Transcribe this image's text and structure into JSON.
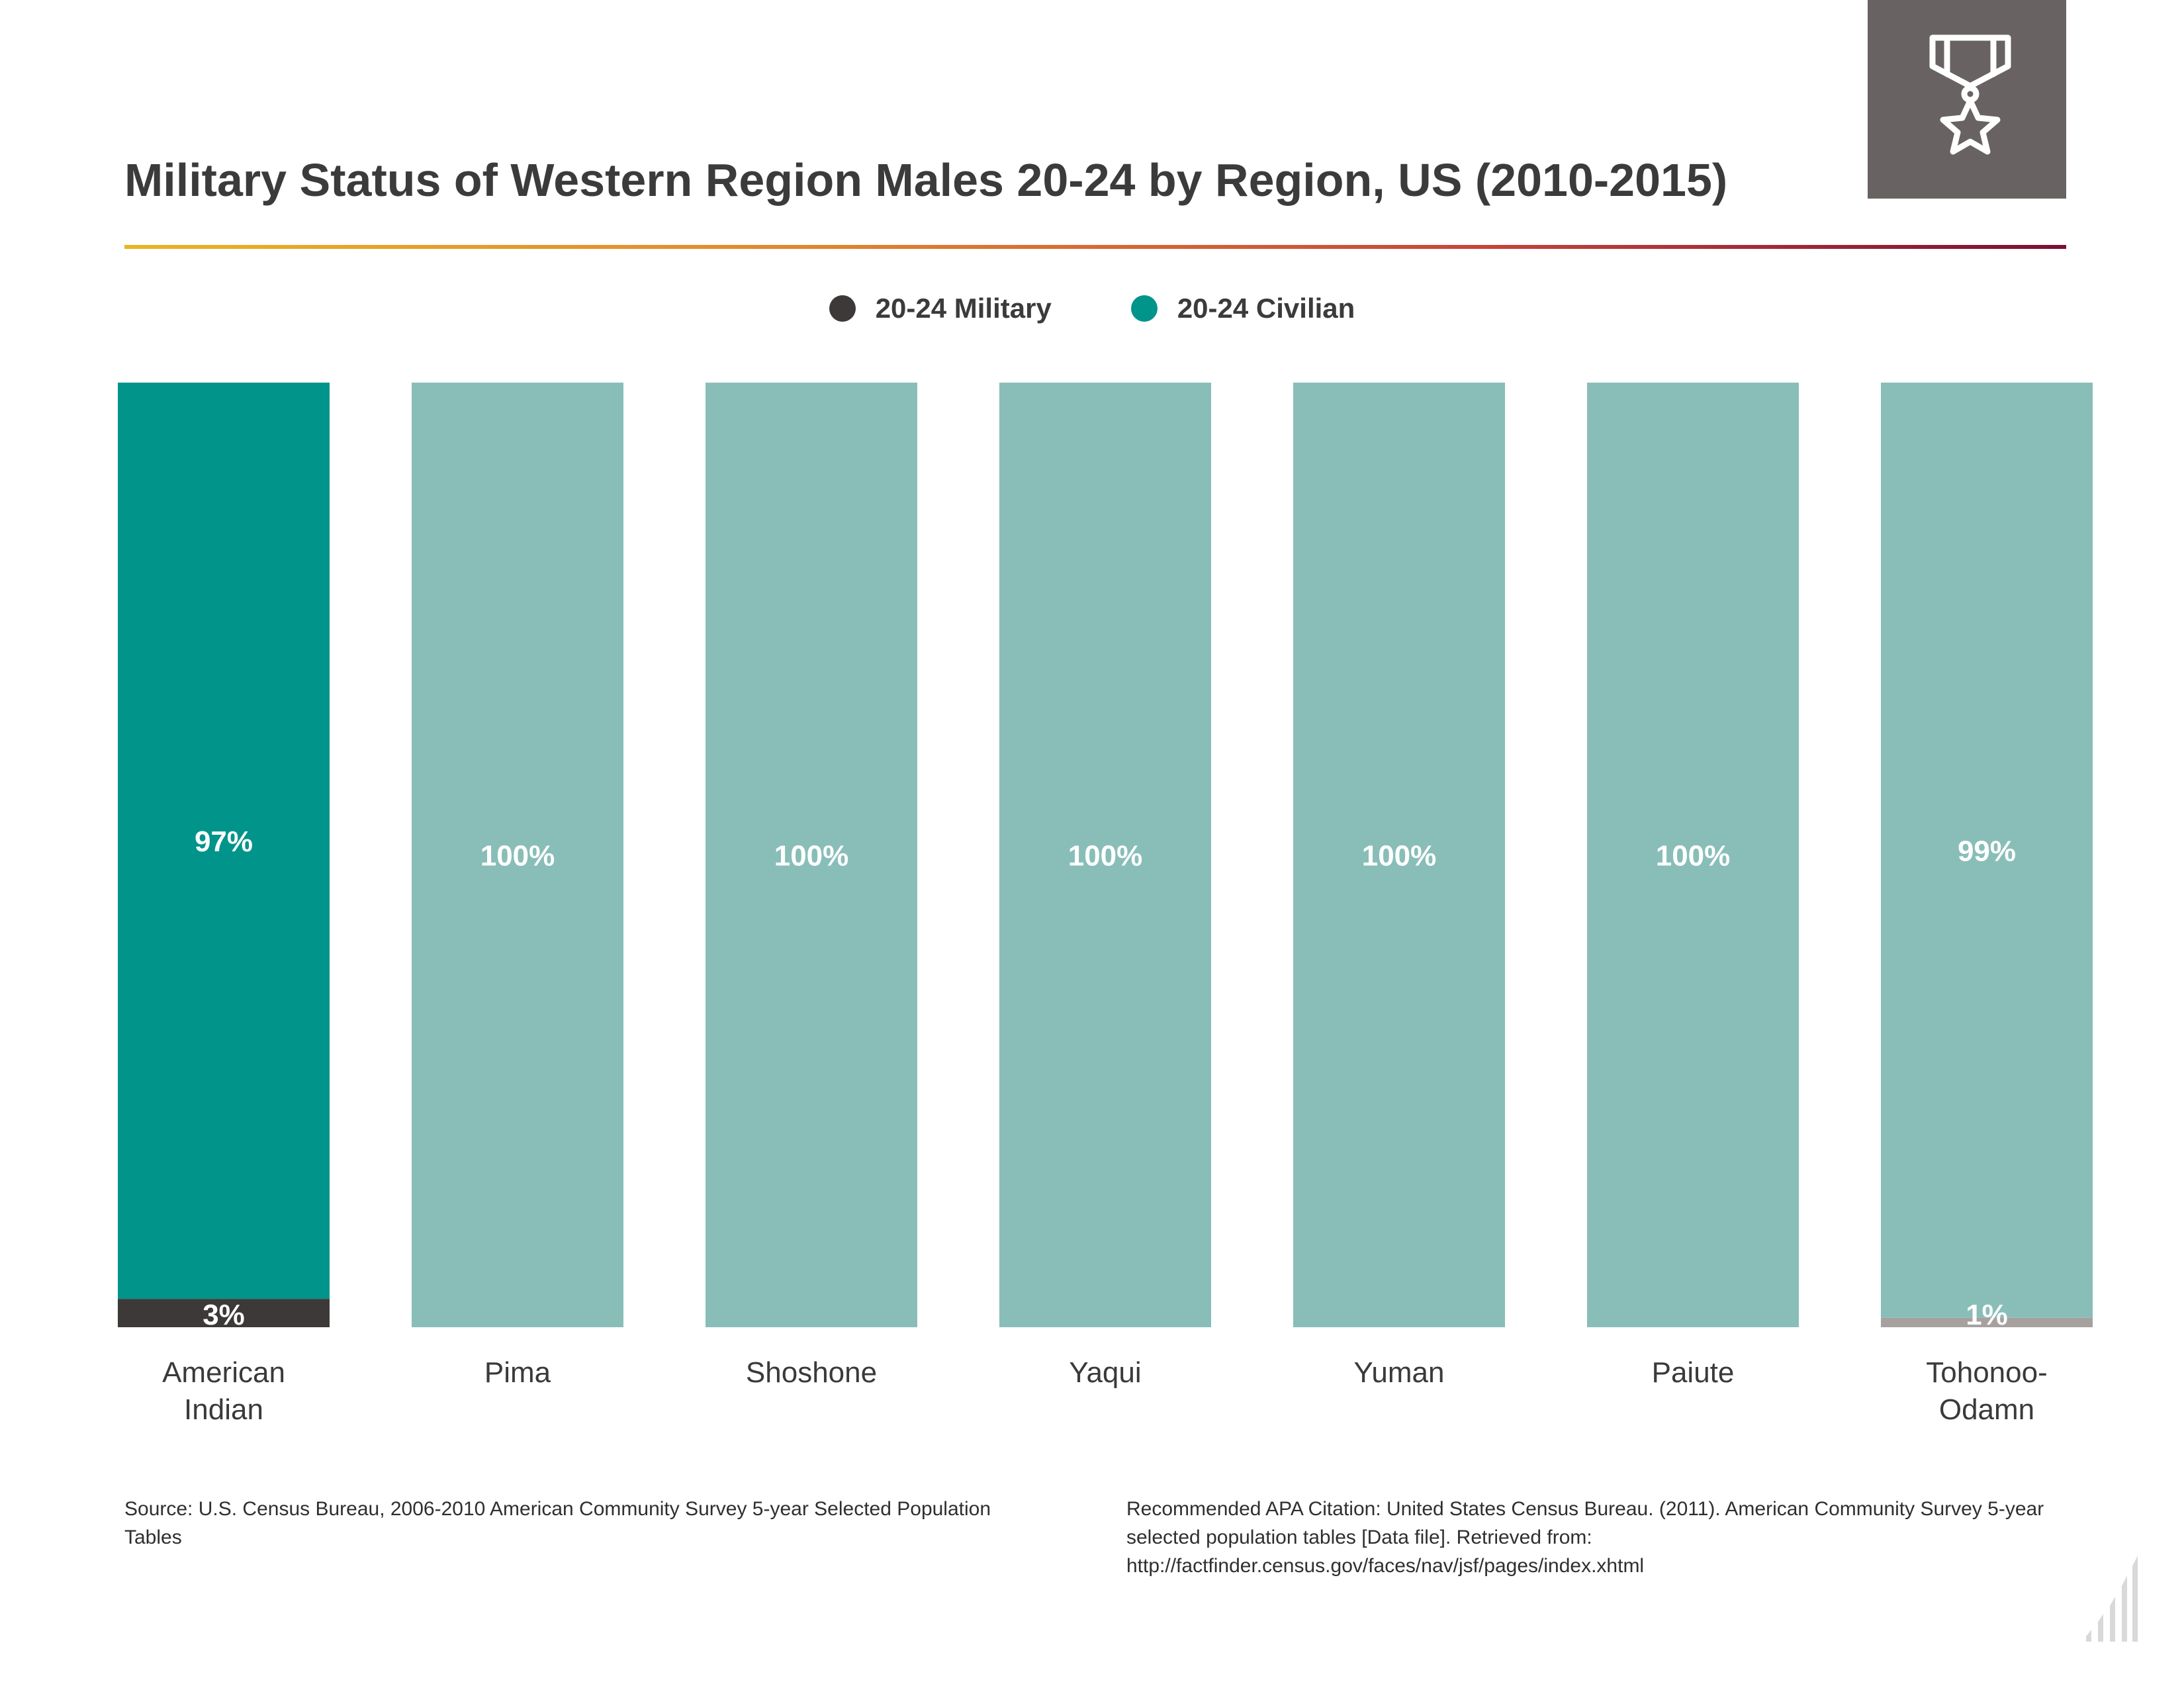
{
  "chart_data": {
    "type": "bar",
    "stacked": true,
    "title": "Military Status of Western Region Males 20-24 by Region, US (2010-2015)",
    "xlabel": "",
    "ylabel": "",
    "ylim": [
      0,
      100
    ],
    "grid": false,
    "legend_position": "top-center",
    "categories": [
      [
        "American",
        "Indian"
      ],
      [
        "Pima"
      ],
      [
        "Shoshone"
      ],
      [
        "Yaqui"
      ],
      [
        "Yuman"
      ],
      [
        "Paiute"
      ],
      [
        "Tohonoo-",
        "Odamn"
      ]
    ],
    "series": [
      {
        "name": "20-24 Military",
        "color": "#3d3938",
        "values": [
          3,
          0,
          0,
          0,
          0,
          0,
          1
        ],
        "labels": [
          "3%",
          "",
          "",
          "",
          "",
          "",
          "1%"
        ]
      },
      {
        "name": "20-24 Civilian",
        "color": "#01948a",
        "values": [
          97,
          100,
          100,
          100,
          100,
          100,
          99
        ],
        "labels": [
          "97%",
          "100%",
          "100%",
          "100%",
          "100%",
          "100%",
          "99%"
        ]
      }
    ],
    "highlight_index": 0,
    "muted_colors": {
      "military": "#a6a09f",
      "civilian": "#89beb8"
    }
  },
  "source": "Source:  U.S. Census Bureau, 2006-2010 American Community Survey 5-year Selected Population Tables",
  "citation": "Recommended APA Citation: United States Census Bureau. (2011). American Community Survey 5-year selected population tables [Data file]. Retrieved from: http://factfinder.census.gov/faces/nav/jsf/pages/index.xhtml",
  "badge_icon": "medal-star-icon",
  "corner_icon": "bar-chart-icon"
}
